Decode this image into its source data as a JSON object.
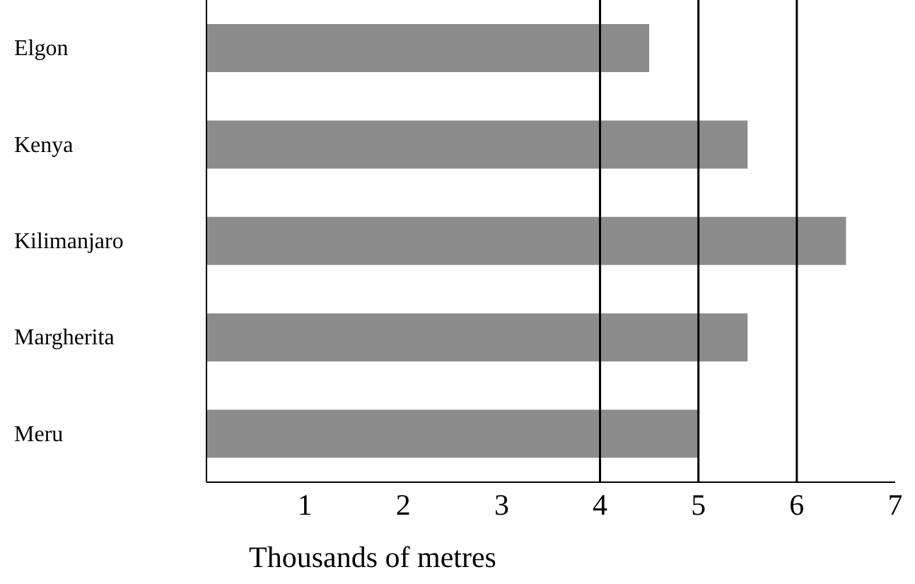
{
  "chart_data": {
    "type": "bar",
    "orientation": "horizontal",
    "xlabel": "Thousands of metres",
    "categories": [
      "Elgon",
      "Kenya",
      "Kilimanjaro",
      "Margherita",
      "Meru"
    ],
    "values": [
      4.5,
      5.5,
      6.5,
      5.5,
      5.0
    ],
    "color": "#8c8c8c",
    "xlim": [
      0,
      7
    ],
    "xticks": [
      1,
      2,
      3,
      4,
      5,
      6,
      7
    ],
    "ref_lines": [
      {
        "axis": "x",
        "value": 4,
        "color": "#000000"
      },
      {
        "axis": "x",
        "value": 5,
        "color": "#000000"
      },
      {
        "axis": "x",
        "value": 6,
        "color": "#000000"
      }
    ],
    "legend": false
  }
}
